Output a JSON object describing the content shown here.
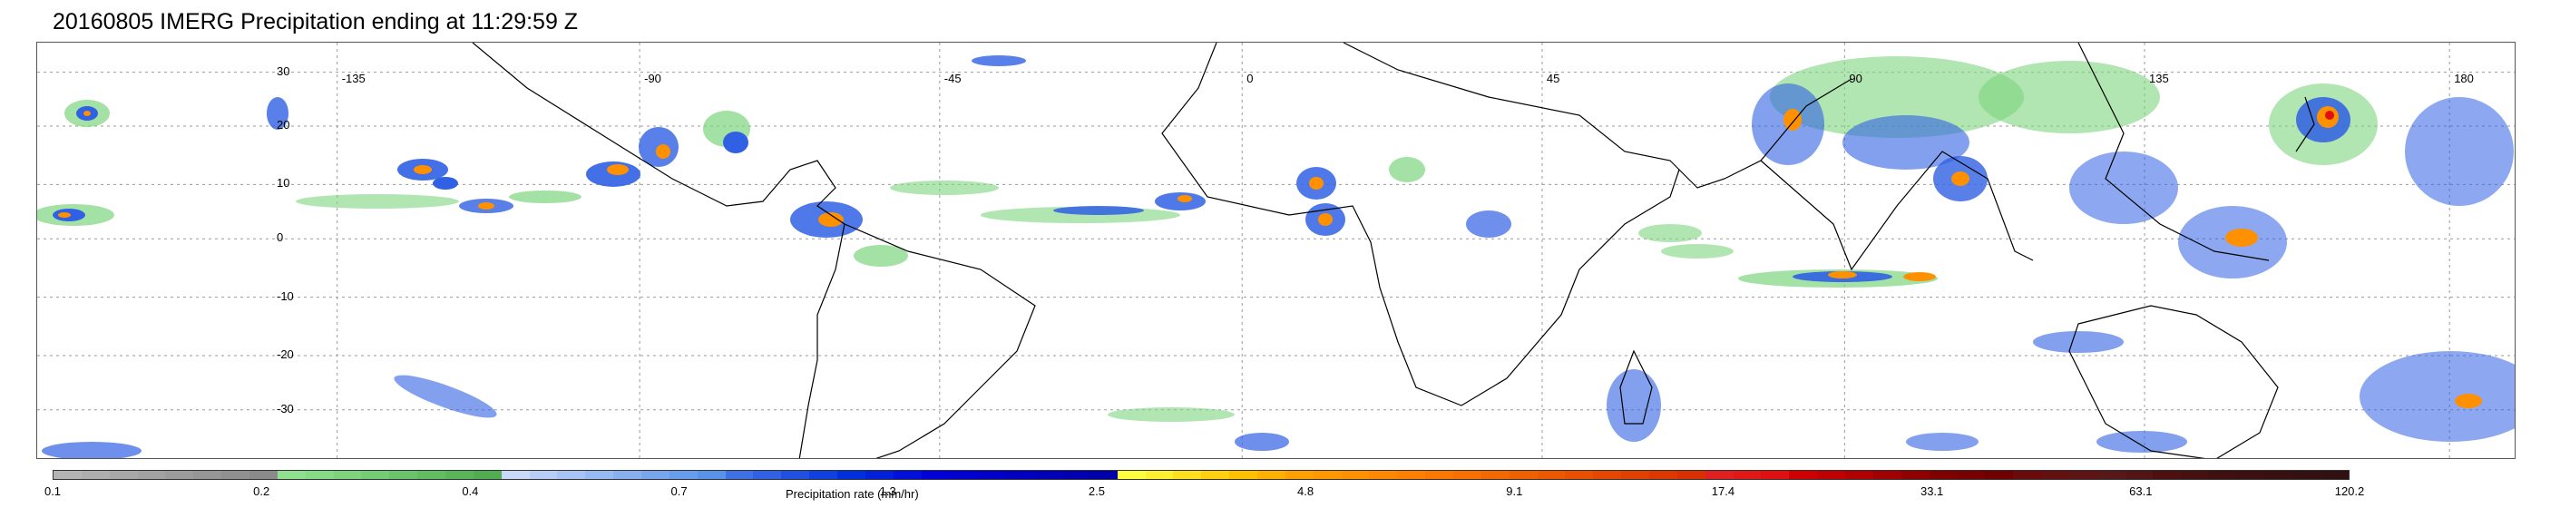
{
  "title": "20160805 IMERG Precipitation ending at 11:29:59 Z",
  "map": {
    "lon_labels": [
      "-135",
      "-90",
      "-45",
      "0",
      "45",
      "90",
      "135",
      "180"
    ],
    "lat_labels": [
      "30",
      "20",
      "10",
      "0",
      "-10",
      "-20",
      "-30"
    ],
    "grid_color": "#9a9a9a",
    "coast_color": "#000000"
  },
  "legend": {
    "title": "Precipitation rate (mm/hr)",
    "tick_labels": [
      "0.1",
      "0.2",
      "0.4",
      "0.7",
      "1.3",
      "2.5",
      "4.8",
      "9.1",
      "17.4",
      "33.1",
      "63.1",
      "120.2"
    ],
    "colors": [
      "#b4b4b4",
      "#aeaeae",
      "#a8a8a8",
      "#a2a2a2",
      "#9c9c9c",
      "#969696",
      "#909090",
      "#8a8a8a",
      "#8fe08f",
      "#86dc86",
      "#7dd47d",
      "#74cc74",
      "#6bc46b",
      "#62bc62",
      "#5ab45a",
      "#52ac52",
      "#c8d8f8",
      "#b8cef6",
      "#a8c4f4",
      "#98baf2",
      "#88b0f0",
      "#78a6ee",
      "#689cec",
      "#5892ea",
      "#4070e6",
      "#3060e4",
      "#2050e2",
      "#1040e0",
      "#0030de",
      "#0020dc",
      "#0010da",
      "#0000d8",
      "#0000d0",
      "#0000c8",
      "#0000c0",
      "#0000b8",
      "#0000b0",
      "#0000a8",
      "#ffff40",
      "#fff030",
      "#ffe020",
      "#ffd010",
      "#ffc000",
      "#ffb000",
      "#ffa000",
      "#ff9800",
      "#ff9000",
      "#ff8800",
      "#ff8000",
      "#fb7800",
      "#f77000",
      "#f36800",
      "#ef6000",
      "#eb5800",
      "#e85000",
      "#e44800",
      "#e04000",
      "#dc3800",
      "#d83000",
      "#e02020",
      "#e01818",
      "#e01010",
      "#d00000",
      "#c00000",
      "#b00000",
      "#a00000",
      "#900000",
      "#800000",
      "#780000",
      "#700000",
      "#6a0a0a",
      "#641010",
      "#5e1414",
      "#581818",
      "#521414",
      "#4c1010",
      "#461010",
      "#401010",
      "#3c1010",
      "#381010",
      "#341010",
      "#301010"
    ]
  }
}
